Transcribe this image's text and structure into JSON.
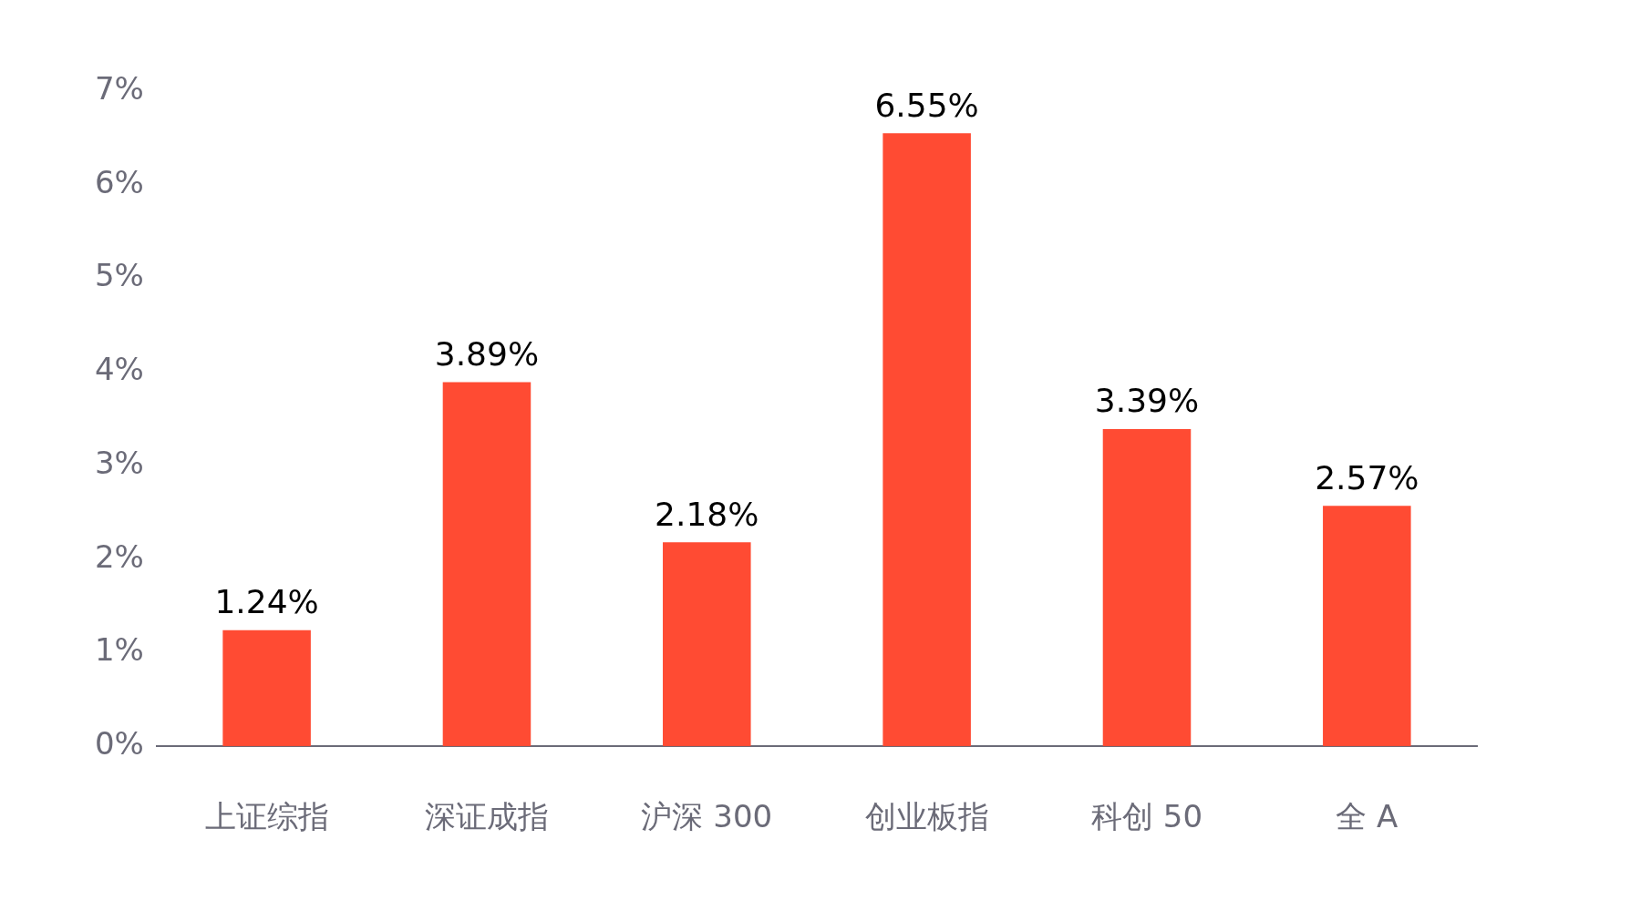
{
  "chart_data": {
    "type": "bar",
    "categories": [
      "上证综指",
      "深证成指",
      "沪深 300",
      "创业板指",
      "科创 50",
      "全 A"
    ],
    "values": [
      1.24,
      3.89,
      2.18,
      6.55,
      3.39,
      2.57
    ],
    "color": "#ff4b33",
    "value_labels": [
      "1.24%",
      "3.89%",
      "2.18%",
      "6.55%",
      "3.39%",
      "2.57%"
    ],
    "ylim": [
      0,
      7
    ],
    "yticks": [
      {
        "value": 0,
        "label": "0%"
      },
      {
        "value": 1,
        "label": "1%"
      },
      {
        "value": 2,
        "label": "2%"
      },
      {
        "value": 3,
        "label": "3%"
      },
      {
        "value": 4,
        "label": "4%"
      },
      {
        "value": 5,
        "label": "5%"
      },
      {
        "value": 6,
        "label": "6%"
      },
      {
        "value": 7,
        "label": "7%"
      }
    ],
    "grid": false,
    "legend": false
  }
}
